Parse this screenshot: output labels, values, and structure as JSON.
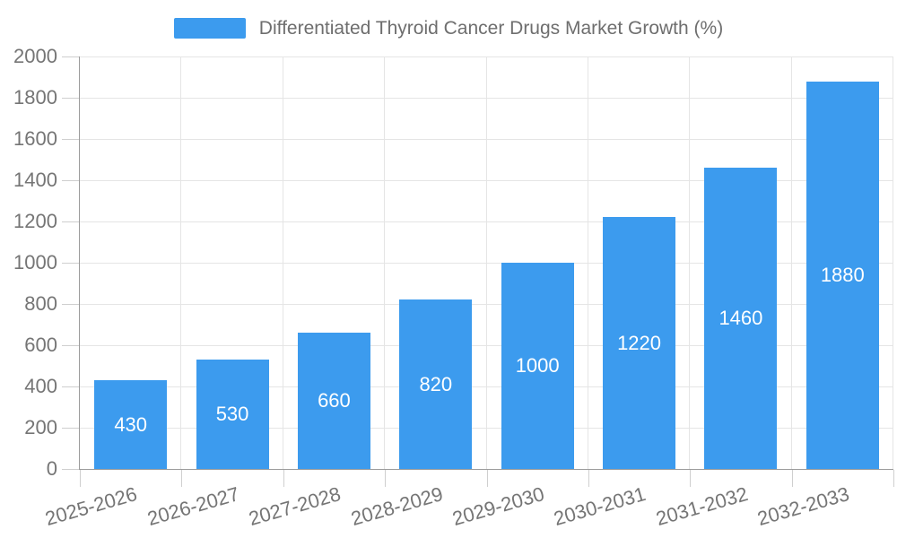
{
  "chart_data": {
    "type": "bar",
    "title": "Differentiated Thyroid Cancer Drugs Market Growth (%)",
    "categories": [
      "2025-2026",
      "2026-2027",
      "2027-2028",
      "2028-2029",
      "2029-2030",
      "2030-2031",
      "2031-2032",
      "2032-2033"
    ],
    "values": [
      430,
      530,
      660,
      820,
      1000,
      1220,
      1460,
      1880
    ],
    "xlabel": "",
    "ylabel": "",
    "ylim": [
      0,
      2000
    ],
    "ytick_step": 200,
    "ytick_labels": [
      "0",
      "200",
      "400",
      "600",
      "800",
      "1000",
      "1200",
      "1400",
      "1600",
      "1800",
      "2000"
    ],
    "grid": "on",
    "legend_position": "top-center",
    "value_label_position": "inside-center",
    "colors": {
      "bar": "#3c9bee",
      "value_label": "#ffffff",
      "axis_line": "#9b9b9b",
      "tick": "#cfcfcf",
      "grid_line": "#e5e5e5",
      "axis_text": "#757575",
      "legend_text": "#6e6e6e",
      "background": "#ffffff"
    }
  }
}
